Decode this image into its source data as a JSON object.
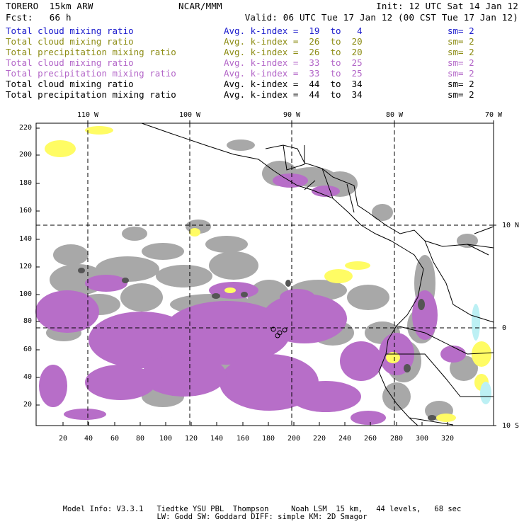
{
  "header": {
    "model": "TORERO  15km ARW",
    "org": "NCAR/MMM",
    "init": "Init: 12 UTC Sat 14 Jan 12",
    "fcst": "Fcst:   66 h",
    "valid": "Valid: 06 UTC Tue 17 Jan 12 (00 CST Tue 17 Jan 12)"
  },
  "legend": [
    {
      "label": "Total cloud mixing ratio",
      "index": "Avg. k-index =  19  to   4",
      "sm": "sm= 2",
      "color": "#1a1acc"
    },
    {
      "label": "Total cloud mixing ratio",
      "index": "Avg. k-index =  26  to  20",
      "sm": "sm= 2",
      "color": "#8c8c14"
    },
    {
      "label": "Total precipitation mixing ratio",
      "index": "Avg. k-index =  26  to  20",
      "sm": "sm= 2",
      "color": "#8c8c14"
    },
    {
      "label": "Total cloud mixing ratio",
      "index": "Avg. k-index =  33  to  25",
      "sm": "sm= 2",
      "color": "#b366c8"
    },
    {
      "label": "Total precipitation mixing ratio",
      "index": "Avg. k-index =  33  to  25",
      "sm": "sm= 2",
      "color": "#b366c8"
    },
    {
      "label": "Total cloud mixing ratio",
      "index": "Avg. k-index =  44  to  34",
      "sm": "sm= 2",
      "color": "#000000"
    },
    {
      "label": "Total precipitation mixing ratio",
      "index": "Avg. k-index =  44  to  34",
      "sm": "sm= 2",
      "color": "#000000"
    }
  ],
  "axes": {
    "lon_labels": [
      "110 W",
      "100 W",
      "90 W",
      "80 W",
      "70 W"
    ],
    "lat_labels": [
      "10 N",
      "0",
      "10 S"
    ],
    "y_ticks": [
      "220",
      "200",
      "180",
      "160",
      "140",
      "120",
      "100",
      "80",
      "60",
      "40",
      "20"
    ],
    "x_ticks": [
      "20",
      "40",
      "60",
      "80",
      "100",
      "120",
      "140",
      "160",
      "180",
      "200",
      "220",
      "240",
      "260",
      "280",
      "300",
      "320"
    ]
  },
  "colors": {
    "gray_cloud": "#a8a8a8",
    "purple_precip": "#b76ec8",
    "yellow_cloud": "#fffc64",
    "cyan_cloud": "#bcf0f4"
  },
  "footer": {
    "line1": "Model Info: V3.3.1   Tiedtke YSU PBL  Thompson     Noah LSM  15 km,   44 levels,   68 sec",
    "line2": "LW: Godd SW: Goddard DIFF: simple KM: 2D Smagor"
  }
}
